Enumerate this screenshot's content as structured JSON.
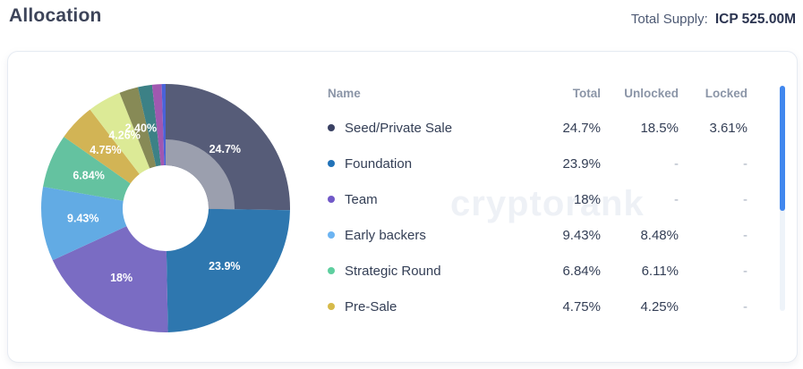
{
  "header": {
    "title": "Allocation",
    "total_supply_label": "Total Supply:",
    "total_supply_value": "ICP 525.00M"
  },
  "watermark": "cryptorank",
  "table": {
    "columns": {
      "name": "Name",
      "total": "Total",
      "unlocked": "Unlocked",
      "locked": "Locked"
    },
    "rows": [
      {
        "name": "Seed/Private Sale",
        "dot_color": "#3a4163",
        "total": "24.7%",
        "unlocked": "18.5%",
        "locked": "3.61%"
      },
      {
        "name": "Foundation",
        "dot_color": "#2272b8",
        "total": "23.9%",
        "unlocked": "-",
        "locked": "-"
      },
      {
        "name": "Team",
        "dot_color": "#7159c8",
        "total": "18%",
        "unlocked": "-",
        "locked": "-"
      },
      {
        "name": "Early backers",
        "dot_color": "#6cb4f2",
        "total": "9.43%",
        "unlocked": "8.48%",
        "locked": "-"
      },
      {
        "name": "Strategic Round",
        "dot_color": "#5ecf9f",
        "total": "6.84%",
        "unlocked": "6.11%",
        "locked": "-"
      },
      {
        "name": "Pre-Sale",
        "dot_color": "#d6ba4a",
        "total": "4.75%",
        "unlocked": "4.25%",
        "locked": "-"
      }
    ]
  },
  "chart_data": {
    "type": "pie",
    "title": "Allocation",
    "legend_position": "right-table",
    "donut_hole_ratio": 0.345,
    "slices": [
      {
        "label": "Seed/Private Sale",
        "value": 24.7,
        "display": "24.7%",
        "color": "#565c78",
        "show_label": true
      },
      {
        "label": "Foundation",
        "value": 23.9,
        "display": "23.9%",
        "color": "#2e77af",
        "show_label": true
      },
      {
        "label": "Team",
        "value": 18,
        "display": "18%",
        "color": "#7a6cc3",
        "show_label": true
      },
      {
        "label": "Early backers",
        "value": 9.43,
        "display": "9.43%",
        "color": "#62abe4",
        "show_label": true
      },
      {
        "label": "Strategic Round",
        "value": 6.84,
        "display": "6.84%",
        "color": "#64c2a0",
        "show_label": true
      },
      {
        "label": "Pre-Sale",
        "value": 4.75,
        "display": "4.75%",
        "color": "#d2b455",
        "show_label": true
      },
      {
        "label": "",
        "value": 4.26,
        "display": "4.26%",
        "color": "#dcea96",
        "show_label": true
      },
      {
        "label": "",
        "value": 2.4,
        "display": "2.40%",
        "color": "#878a56",
        "show_label": true
      },
      {
        "label": "",
        "value": 1.8,
        "display": "",
        "color": "#3c8186",
        "show_label": false
      },
      {
        "label": "",
        "value": 1.2,
        "display": "",
        "color": "#a058b0",
        "show_label": false
      },
      {
        "label": "",
        "value": 0.5,
        "display": "",
        "color": "#4a62d8",
        "show_label": false
      }
    ],
    "inner_highlight": {
      "slice_index": 0,
      "color": "#9b9fae"
    }
  }
}
